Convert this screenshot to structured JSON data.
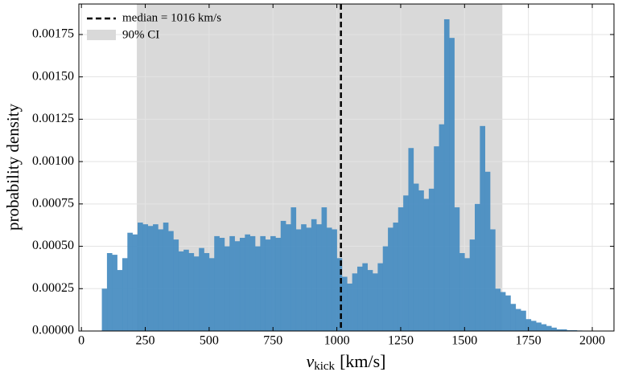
{
  "chart_data": {
    "type": "histogram",
    "xlabel": {
      "main": "v",
      "sub": "kick",
      "unit": "[km/s]"
    },
    "ylabel": "probability density",
    "bins": [
      80,
      100,
      120,
      140,
      160,
      180,
      200,
      220,
      240,
      260,
      280,
      300,
      320,
      340,
      360,
      380,
      400,
      420,
      440,
      460,
      480,
      500,
      520,
      540,
      560,
      580,
      600,
      620,
      640,
      660,
      680,
      700,
      720,
      740,
      760,
      780,
      800,
      820,
      840,
      860,
      880,
      900,
      920,
      940,
      960,
      980,
      1000,
      1020,
      1040,
      1060,
      1080,
      1100,
      1120,
      1140,
      1160,
      1180,
      1200,
      1220,
      1240,
      1260,
      1280,
      1300,
      1320,
      1340,
      1360,
      1380,
      1400,
      1420,
      1440,
      1460,
      1480,
      1500,
      1520,
      1540,
      1560,
      1580,
      1600,
      1620,
      1640,
      1660,
      1680,
      1700,
      1720,
      1740,
      1760,
      1780,
      1800,
      1820,
      1840,
      1860,
      1880,
      1900,
      1920,
      1940,
      1960,
      1980,
      2000
    ],
    "values": [
      0.00025,
      0.00046,
      0.00045,
      0.00036,
      0.00043,
      0.00058,
      0.00057,
      0.00064,
      0.00063,
      0.00062,
      0.00063,
      0.0006,
      0.00064,
      0.00059,
      0.00054,
      0.00047,
      0.00048,
      0.00046,
      0.00044,
      0.00049,
      0.00046,
      0.00043,
      0.00056,
      0.00055,
      0.0005,
      0.00056,
      0.00053,
      0.00055,
      0.00057,
      0.00056,
      0.0005,
      0.00056,
      0.00054,
      0.00056,
      0.00055,
      0.00065,
      0.00063,
      0.00073,
      0.0006,
      0.00063,
      0.00061,
      0.00066,
      0.00063,
      0.00073,
      0.00061,
      0.0006,
      0.00043,
      0.00032,
      0.00028,
      0.00034,
      0.00038,
      0.0004,
      0.00036,
      0.00034,
      0.0004,
      0.0005,
      0.00061,
      0.00064,
      0.00073,
      0.0008,
      0.00108,
      0.00087,
      0.00083,
      0.00078,
      0.00084,
      0.00109,
      0.00122,
      0.00184,
      0.00173,
      0.00073,
      0.00046,
      0.00043,
      0.00054,
      0.00075,
      0.00121,
      0.00094,
      0.0006,
      0.00025,
      0.00023,
      0.00021,
      0.00016,
      0.00013,
      0.00012,
      7e-05,
      6e-05,
      5e-05,
      4e-05,
      3e-05,
      2e-05,
      1e-05,
      1e-05,
      5e-06,
      5e-06,
      3e-06,
      2e-06,
      2e-06
    ],
    "color": "#4a8ec2",
    "median": 1016,
    "median_label": "median = 1016 km/s",
    "ci": [
      217,
      1648
    ],
    "ci_label": "90% CI",
    "ci_color": "#d9d9d9",
    "xlim": [
      -10,
      2085
    ],
    "ylim": [
      0,
      0.00193
    ],
    "xticks": [
      0,
      250,
      500,
      750,
      1000,
      1250,
      1500,
      1750,
      2000
    ],
    "yticks": [
      {
        "value": 0,
        "label": "0.00000"
      },
      {
        "value": 0.00025,
        "label": "0.00025"
      },
      {
        "value": 0.0005,
        "label": "0.00050"
      },
      {
        "value": 0.00075,
        "label": "0.00075"
      },
      {
        "value": 0.001,
        "label": "0.00100"
      },
      {
        "value": 0.00125,
        "label": "0.00125"
      },
      {
        "value": 0.0015,
        "label": "0.00150"
      },
      {
        "value": 0.00175,
        "label": "0.00175"
      }
    ],
    "grid": true,
    "legend": "upper left"
  }
}
